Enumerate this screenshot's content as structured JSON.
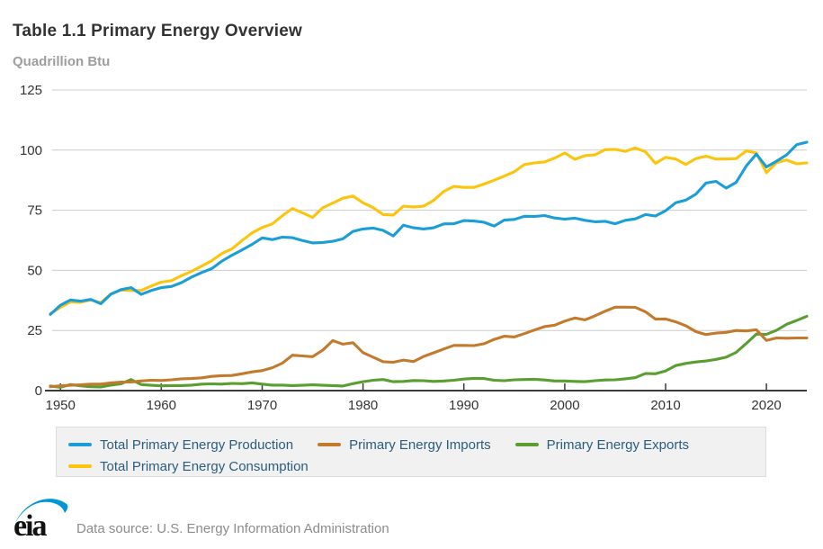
{
  "page": {
    "title": "Table 1.1 Primary Energy Overview",
    "unit_label": "Quadrillion Btu"
  },
  "footer": {
    "logo_text": "eia",
    "source_text": "Data source: U.S. Energy Information Administration"
  },
  "colors": {
    "production_blue": "#1b9ed8",
    "consumption_yellow": "#fcc40d",
    "imports_brown": "#c27a2c",
    "exports_green": "#5a9e32",
    "grid": "#cccccc",
    "axis": "#3a3a3a",
    "tick_label": "#333333",
    "legend_text": "#2a5d7c",
    "legend_bg": "#f1f1f1",
    "eia_logo_blue": "#0096d7"
  },
  "legend": {
    "rows": [
      [
        {
          "label": "Total Primary Energy Production",
          "color": "#1b9ed8"
        },
        {
          "label": "Primary Energy Imports",
          "color": "#c27a2c"
        },
        {
          "label": "Primary Energy Exports",
          "color": "#5a9e32"
        }
      ],
      [
        {
          "label": "Total Primary Energy Consumption",
          "color": "#fcc40d"
        }
      ]
    ]
  },
  "chart_data": {
    "type": "line",
    "title": "Table 1.1 Primary Energy Overview",
    "ylabel": "Quadrillion Btu",
    "xlabel": "",
    "grid": true,
    "legend_position": "bottom",
    "xlim": [
      1949,
      2024
    ],
    "ylim": [
      0,
      125
    ],
    "y_ticks": [
      0,
      25,
      50,
      75,
      100,
      125
    ],
    "x_ticks": [
      1950,
      1960,
      1970,
      1980,
      1990,
      2000,
      2010,
      2020
    ],
    "x": [
      1949,
      1950,
      1951,
      1952,
      1953,
      1954,
      1955,
      1956,
      1957,
      1958,
      1959,
      1960,
      1961,
      1962,
      1963,
      1964,
      1965,
      1966,
      1967,
      1968,
      1969,
      1970,
      1971,
      1972,
      1973,
      1974,
      1975,
      1976,
      1977,
      1978,
      1979,
      1980,
      1981,
      1982,
      1983,
      1984,
      1985,
      1986,
      1987,
      1988,
      1989,
      1990,
      1991,
      1992,
      1993,
      1994,
      1995,
      1996,
      1997,
      1998,
      1999,
      2000,
      2001,
      2002,
      2003,
      2004,
      2005,
      2006,
      2007,
      2008,
      2009,
      2010,
      2011,
      2012,
      2013,
      2014,
      2015,
      2016,
      2017,
      2018,
      2019,
      2020,
      2021,
      2022,
      2023,
      2024
    ],
    "series": [
      {
        "name": "Primary Energy Exports",
        "color": "#5a9e32",
        "values": [
          1.9,
          1.4,
          2.5,
          2.0,
          1.6,
          1.5,
          2.3,
          2.8,
          4.6,
          2.5,
          2.2,
          2.0,
          2.1,
          2.1,
          2.3,
          2.7,
          2.8,
          2.7,
          3.0,
          2.9,
          3.2,
          2.7,
          2.3,
          2.3,
          2.1,
          2.2,
          2.4,
          2.2,
          2.1,
          1.9,
          2.9,
          3.7,
          4.3,
          4.6,
          3.7,
          3.8,
          4.2,
          4.1,
          3.8,
          4.0,
          4.3,
          4.8,
          5.1,
          5.0,
          4.3,
          4.1,
          4.5,
          4.6,
          4.7,
          4.4,
          4.0,
          4.0,
          3.8,
          3.7,
          4.1,
          4.4,
          4.5,
          4.9,
          5.4,
          7.1,
          7.0,
          8.2,
          10.4,
          11.3,
          11.9,
          12.3,
          13.0,
          13.9,
          15.9,
          19.6,
          23.5,
          23.4,
          25.1,
          27.6,
          29.2,
          30.9
        ]
      },
      {
        "name": "Primary Energy Imports",
        "color": "#c27a2c",
        "values": [
          1.6,
          2.0,
          2.2,
          2.4,
          2.7,
          2.7,
          3.2,
          3.5,
          3.6,
          4.0,
          4.3,
          4.2,
          4.5,
          4.9,
          5.0,
          5.3,
          5.9,
          6.2,
          6.3,
          7.0,
          7.8,
          8.3,
          9.5,
          11.4,
          14.7,
          14.4,
          14.1,
          16.8,
          20.8,
          19.3,
          19.9,
          15.8,
          13.9,
          12.0,
          11.8,
          12.7,
          12.1,
          14.2,
          15.7,
          17.3,
          18.8,
          18.8,
          18.7,
          19.5,
          21.3,
          22.6,
          22.3,
          23.7,
          25.2,
          26.6,
          27.2,
          28.9,
          30.2,
          29.4,
          31.1,
          33.0,
          34.7,
          34.7,
          34.6,
          32.8,
          29.7,
          29.8,
          28.6,
          27.0,
          24.5,
          23.3,
          23.9,
          24.2,
          25.0,
          24.8,
          25.3,
          20.9,
          21.9,
          21.8,
          21.9,
          21.9
        ]
      },
      {
        "name": "Total Primary Energy Consumption",
        "color": "#fcc40d",
        "values": [
          32.0,
          34.6,
          36.9,
          36.7,
          37.7,
          36.6,
          40.2,
          41.8,
          41.6,
          41.6,
          43.5,
          45.1,
          45.7,
          47.8,
          49.6,
          51.8,
          54.0,
          57.0,
          58.9,
          62.4,
          65.6,
          67.8,
          69.3,
          72.7,
          75.7,
          73.9,
          72.0,
          76.0,
          78.0,
          80.0,
          80.9,
          78.1,
          76.1,
          73.2,
          73.0,
          76.7,
          76.4,
          76.7,
          79.1,
          82.8,
          84.9,
          84.5,
          84.5,
          85.9,
          87.5,
          89.2,
          91.0,
          94.0,
          94.7,
          95.1,
          96.7,
          98.8,
          96.2,
          97.7,
          98.0,
          100.2,
          100.3,
          99.5,
          100.9,
          99.3,
          94.5,
          97.0,
          96.3,
          94.0,
          96.5,
          97.5,
          96.3,
          96.3,
          96.5,
          99.7,
          98.8,
          90.6,
          94.8,
          95.9,
          94.3,
          94.7
        ]
      },
      {
        "name": "Total Primary Energy Production",
        "color": "#1b9ed8",
        "values": [
          31.7,
          35.5,
          37.7,
          37.2,
          37.9,
          36.1,
          40.1,
          42.0,
          42.8,
          40.0,
          41.6,
          42.8,
          43.3,
          44.9,
          47.2,
          49.1,
          50.7,
          53.8,
          56.3,
          58.5,
          60.8,
          63.5,
          62.8,
          63.8,
          63.6,
          62.4,
          61.4,
          61.6,
          62.1,
          63.1,
          66.2,
          67.2,
          67.6,
          66.6,
          64.3,
          68.8,
          67.7,
          67.2,
          67.7,
          69.3,
          69.4,
          70.7,
          70.5,
          70.0,
          68.4,
          70.9,
          71.2,
          72.5,
          72.4,
          72.8,
          71.8,
          71.3,
          71.7,
          70.8,
          70.2,
          70.4,
          69.4,
          70.8,
          71.4,
          73.2,
          72.6,
          74.8,
          78.1,
          79.2,
          81.7,
          86.3,
          87.0,
          84.2,
          86.6,
          93.4,
          98.3,
          93.0,
          95.4,
          98.0,
          102.3,
          103.3
        ]
      }
    ]
  }
}
